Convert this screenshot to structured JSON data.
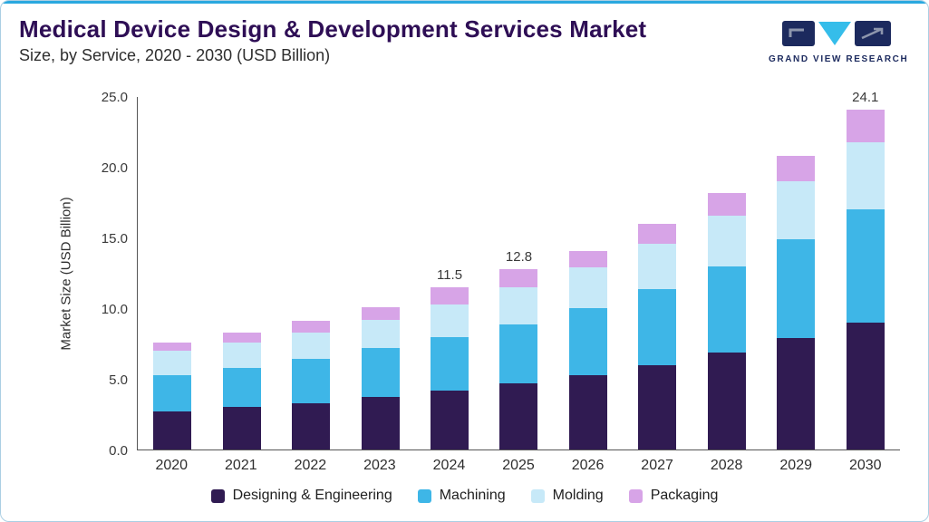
{
  "header": {
    "title": "Medical Device Design & Development Services Market",
    "subtitle": "Size, by Service, 2020 - 2030 (USD Billion)"
  },
  "logo": {
    "text": "GRAND VIEW RESEARCH",
    "navy": "#1c2a5e",
    "cyan": "#35bdea"
  },
  "chart_data": {
    "type": "bar",
    "stacked": true,
    "title": "Medical Device Design & Development Services Market Size, by Service, 2020 - 2030 (USD Billion)",
    "categories": [
      "2020",
      "2021",
      "2022",
      "2023",
      "2024",
      "2025",
      "2026",
      "2027",
      "2028",
      "2029",
      "2030"
    ],
    "series": [
      {
        "name": "Designing & Engineering",
        "color": "#301b52",
        "values": [
          2.7,
          3.0,
          3.3,
          3.7,
          4.2,
          4.7,
          5.3,
          6.0,
          6.9,
          7.9,
          9.0
        ]
      },
      {
        "name": "Machining",
        "color": "#3eb6e7",
        "values": [
          2.6,
          2.8,
          3.1,
          3.5,
          3.8,
          4.2,
          4.7,
          5.4,
          6.1,
          7.0,
          8.0
        ]
      },
      {
        "name": "Molding",
        "color": "#c7e9f8",
        "values": [
          1.7,
          1.8,
          1.9,
          2.0,
          2.3,
          2.6,
          2.9,
          3.2,
          3.6,
          4.1,
          4.8
        ]
      },
      {
        "name": "Packaging",
        "color": "#d7a4e7",
        "values": [
          0.6,
          0.7,
          0.8,
          0.9,
          1.2,
          1.3,
          1.2,
          1.4,
          1.6,
          1.8,
          2.3
        ]
      }
    ],
    "totals": [
      7.6,
      8.3,
      9.1,
      10.1,
      11.5,
      12.8,
      14.1,
      16.0,
      18.2,
      20.8,
      24.1
    ],
    "bar_total_labels": {
      "2024": "11.5",
      "2025": "12.8",
      "2030": "24.1"
    },
    "xlabel": "",
    "ylabel": "Market Size (USD Billion)",
    "ylim": [
      0,
      25
    ],
    "yticks": [
      "0.0",
      "5.0",
      "10.0",
      "15.0",
      "20.0",
      "25.0"
    ],
    "grid": false,
    "legend_position": "bottom"
  }
}
